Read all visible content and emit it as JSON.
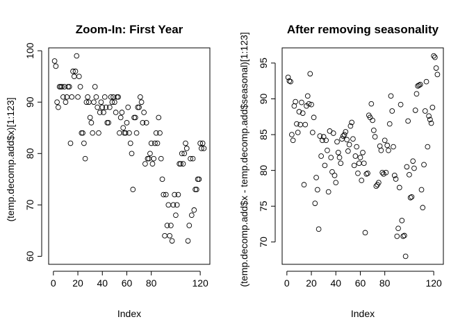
{
  "chart_data": [
    {
      "type": "scatter",
      "title": "Zoom-In: First Year",
      "xlabel": "Index",
      "ylabel": "(temp.decomp.add$x)[1:123]",
      "xlim": [
        1,
        123
      ],
      "ylim": [
        60,
        99
      ],
      "xticks": [
        0,
        20,
        40,
        60,
        80,
        120
      ],
      "yticks": [
        60,
        70,
        80,
        90,
        100
      ],
      "x": [
        1,
        2,
        3,
        4,
        5,
        6,
        7,
        8,
        9,
        10,
        11,
        12,
        13,
        14,
        15,
        16,
        17,
        18,
        19,
        20,
        21,
        22,
        23,
        24,
        25,
        26,
        27,
        28,
        29,
        30,
        31,
        32,
        33,
        34,
        35,
        36,
        37,
        38,
        39,
        40,
        41,
        42,
        43,
        44,
        45,
        46,
        47,
        48,
        49,
        50,
        51,
        52,
        53,
        54,
        55,
        56,
        57,
        58,
        59,
        60,
        61,
        62,
        63,
        64,
        65,
        66,
        67,
        68,
        69,
        70,
        71,
        72,
        73,
        74,
        75,
        76,
        77,
        78,
        79,
        80,
        81,
        82,
        83,
        84,
        85,
        86,
        87,
        88,
        89,
        90,
        91,
        92,
        93,
        94,
        95,
        96,
        97,
        98,
        99,
        100,
        101,
        102,
        103,
        104,
        105,
        106,
        107,
        108,
        109,
        110,
        111,
        112,
        113,
        114,
        115,
        116,
        117,
        118,
        119,
        120,
        121,
        122,
        123
      ],
      "y": [
        98,
        97,
        90,
        89,
        93,
        93,
        93,
        91,
        93,
        90,
        91,
        93,
        93,
        82,
        91,
        96,
        95,
        96,
        99,
        91,
        95,
        93,
        84,
        84,
        82,
        79,
        90,
        91,
        90,
        87,
        86,
        84,
        90,
        93,
        91,
        89,
        84,
        88,
        90,
        89,
        88,
        91,
        89,
        86,
        86,
        89,
        91,
        90,
        91,
        90,
        88,
        91,
        91,
        84,
        87,
        88,
        85,
        84,
        84,
        86,
        89,
        84,
        82,
        80,
        73,
        87,
        87,
        84,
        89,
        89,
        91,
        90,
        86,
        88,
        78,
        86,
        79,
        79,
        80,
        82,
        78,
        79,
        82,
        84,
        82,
        87,
        84,
        79,
        75,
        72,
        64,
        72,
        66,
        70,
        64,
        66,
        63,
        70,
        72,
        68,
        70,
        72,
        78,
        78,
        80,
        78,
        80,
        82,
        81,
        63,
        66,
        79,
        68,
        79,
        69,
        73,
        73,
        75,
        75,
        82,
        81,
        82,
        81
      ]
    },
    {
      "type": "scatter",
      "title": "After removing seasonality",
      "xlabel": "Index",
      "ylabel": "(temp.decomp.add$x - temp.decomp.add$seasonal)[1:123]",
      "xlim": [
        1,
        123
      ],
      "ylim": [
        68,
        96
      ],
      "xticks": [
        0,
        20,
        40,
        60,
        80,
        120
      ],
      "yticks": [
        70,
        75,
        80,
        85,
        90,
        95
      ],
      "x": [
        1,
        2,
        3,
        4,
        5,
        6,
        7,
        8,
        9,
        10,
        11,
        12,
        13,
        14,
        15,
        16,
        17,
        18,
        19,
        20,
        21,
        22,
        23,
        24,
        25,
        26,
        27,
        28,
        29,
        30,
        31,
        32,
        33,
        34,
        35,
        36,
        37,
        38,
        39,
        40,
        41,
        42,
        43,
        44,
        45,
        46,
        47,
        48,
        49,
        50,
        51,
        52,
        53,
        54,
        55,
        56,
        57,
        58,
        59,
        60,
        61,
        62,
        63,
        64,
        65,
        66,
        67,
        68,
        69,
        70,
        71,
        72,
        73,
        74,
        75,
        76,
        77,
        78,
        79,
        80,
        81,
        82,
        83,
        84,
        85,
        86,
        87,
        88,
        89,
        90,
        91,
        92,
        93,
        94,
        95,
        96,
        97,
        98,
        99,
        100,
        101,
        102,
        103,
        104,
        105,
        106,
        107,
        108,
        109,
        110,
        111,
        112,
        113,
        114,
        115,
        116,
        117,
        118,
        119,
        120,
        121,
        122,
        123
      ],
      "y": [
        93,
        92.5,
        92.4,
        85,
        84.2,
        89,
        89.6,
        86.5,
        85.3,
        88.2,
        86.4,
        89.5,
        88,
        78,
        86.4,
        89,
        90.4,
        89.3,
        93.5,
        89.2,
        85.3,
        87.4,
        75.4,
        79,
        77.3,
        71.8,
        84.8,
        82,
        84.2,
        84.7,
        80.7,
        84.2,
        82.8,
        77,
        85.5,
        81.8,
        79.8,
        85.2,
        79.3,
        78.3,
        84,
        82.5,
        81.8,
        81,
        84.4,
        84.8,
        85,
        85.4,
        84.3,
        82.7,
        83.6,
        86.2,
        86.7,
        84.4,
        80.7,
        82,
        83.3,
        79.6,
        81,
        81.8,
        78.6,
        82.5,
        81,
        71.3,
        79.5,
        79.6,
        87.7,
        87.4,
        89.3,
        87,
        85.6,
        84.7,
        77.8,
        78,
        78.3,
        83.4,
        82.8,
        79.7,
        79.5,
        84.2,
        79.7,
        83.5,
        82.8,
        86.5,
        90.4,
        88.3,
        83.3,
        79.3,
        78.8,
        70.8,
        71.9,
        77.6,
        89.2,
        73,
        70.8,
        70.9,
        68,
        80.5,
        86.9,
        79.4,
        76.2,
        76.3,
        81.3,
        80.3,
        88.4,
        90.7,
        91.8,
        91.9,
        92,
        77.3,
        74.8,
        80.8,
        88.3,
        92.4,
        83.3,
        87.6,
        87.1,
        86.6,
        88.8,
        96,
        95.8,
        94.3,
        93.4
      ]
    }
  ]
}
